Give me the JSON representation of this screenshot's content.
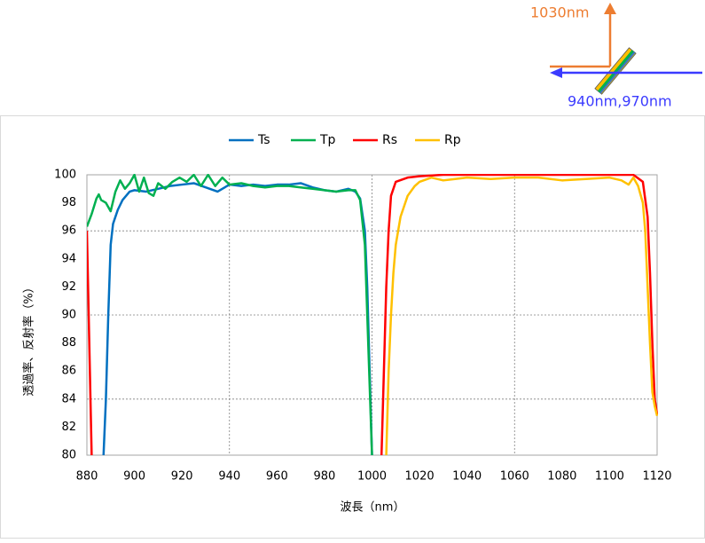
{
  "diagram": {
    "reflect_label": "1030nm",
    "transmit_label": "940nm,970nm"
  },
  "chart_data": {
    "type": "line",
    "xlabel": "波長（nm）",
    "ylabel": "透過率、反射率（%）",
    "xlim": [
      880,
      1120
    ],
    "xticks": [
      880,
      900,
      920,
      940,
      960,
      980,
      1000,
      1020,
      1040,
      1060,
      1080,
      1100,
      1120
    ],
    "ylim": [
      80,
      100
    ],
    "yticks": [
      80,
      82,
      84,
      86,
      88,
      90,
      92,
      94,
      96,
      98,
      100
    ],
    "grid": true,
    "legend": "top",
    "series": [
      {
        "name": "Ts",
        "color": "#0070c0",
        "x": [
          887,
          888,
          889,
          890,
          891,
          893,
          895,
          898,
          900,
          905,
          910,
          915,
          920,
          925,
          930,
          935,
          940,
          945,
          950,
          955,
          960,
          965,
          970,
          975,
          980,
          985,
          990,
          993,
          995,
          997,
          998,
          999,
          1000
        ],
        "values": [
          80,
          84,
          90,
          95,
          96.5,
          97.5,
          98.2,
          98.8,
          98.9,
          98.8,
          99.0,
          99.2,
          99.3,
          99.4,
          99.1,
          98.8,
          99.3,
          99.2,
          99.3,
          99.2,
          99.3,
          99.3,
          99.4,
          99.1,
          98.9,
          98.8,
          99.0,
          98.8,
          98.3,
          96,
          92,
          86,
          80
        ]
      },
      {
        "name": "Tp",
        "color": "#00b050",
        "x": [
          880,
          882,
          884,
          885,
          886,
          888,
          890,
          892,
          894,
          896,
          898,
          900,
          902,
          904,
          906,
          908,
          910,
          913,
          916,
          919,
          922,
          925,
          928,
          931,
          934,
          937,
          940,
          945,
          950,
          955,
          960,
          965,
          970,
          975,
          980,
          985,
          990,
          993,
          995,
          997,
          998,
          999,
          1000
        ],
        "values": [
          96.3,
          97.2,
          98.3,
          98.6,
          98.2,
          98.0,
          97.4,
          98.8,
          99.6,
          99.0,
          99.4,
          100,
          98.8,
          99.8,
          98.7,
          98.5,
          99.4,
          99.0,
          99.5,
          99.8,
          99.5,
          100,
          99.2,
          100,
          99.2,
          99.8,
          99.3,
          99.4,
          99.2,
          99.1,
          99.2,
          99.2,
          99.1,
          99.0,
          98.9,
          98.8,
          98.9,
          98.9,
          98.2,
          95,
          90,
          85,
          80
        ]
      },
      {
        "name": "Rs",
        "color": "#ff0000",
        "x": [
          880,
          881,
          882,
          883,
          1004,
          1005,
          1006,
          1007,
          1008,
          1010,
          1015,
          1020,
          1030,
          1040,
          1060,
          1080,
          1100,
          1110,
          1114,
          1116,
          1117,
          1118,
          1119,
          1120
        ],
        "values": [
          96,
          88,
          80,
          null,
          80,
          86,
          92,
          96,
          98.5,
          99.5,
          99.8,
          99.9,
          100,
          100,
          100,
          100,
          100,
          100,
          99.5,
          97,
          93,
          88,
          84,
          82.9
        ]
      },
      {
        "name": "Rp",
        "color": "#ffc000",
        "x": [
          1006,
          1007,
          1008,
          1009,
          1010,
          1012,
          1015,
          1018,
          1020,
          1025,
          1030,
          1035,
          1040,
          1050,
          1060,
          1070,
          1080,
          1090,
          1100,
          1105,
          1108,
          1110,
          1112,
          1114,
          1115,
          1116,
          1117,
          1118,
          1119,
          1120
        ],
        "values": [
          80,
          86,
          90,
          93,
          95,
          97,
          98.5,
          99.2,
          99.5,
          99.8,
          99.6,
          99.7,
          99.8,
          99.7,
          99.8,
          99.8,
          99.6,
          99.7,
          99.8,
          99.6,
          99.3,
          99.8,
          99.2,
          98.0,
          96,
          92,
          88,
          84.5,
          83.5,
          82.8
        ]
      }
    ]
  }
}
